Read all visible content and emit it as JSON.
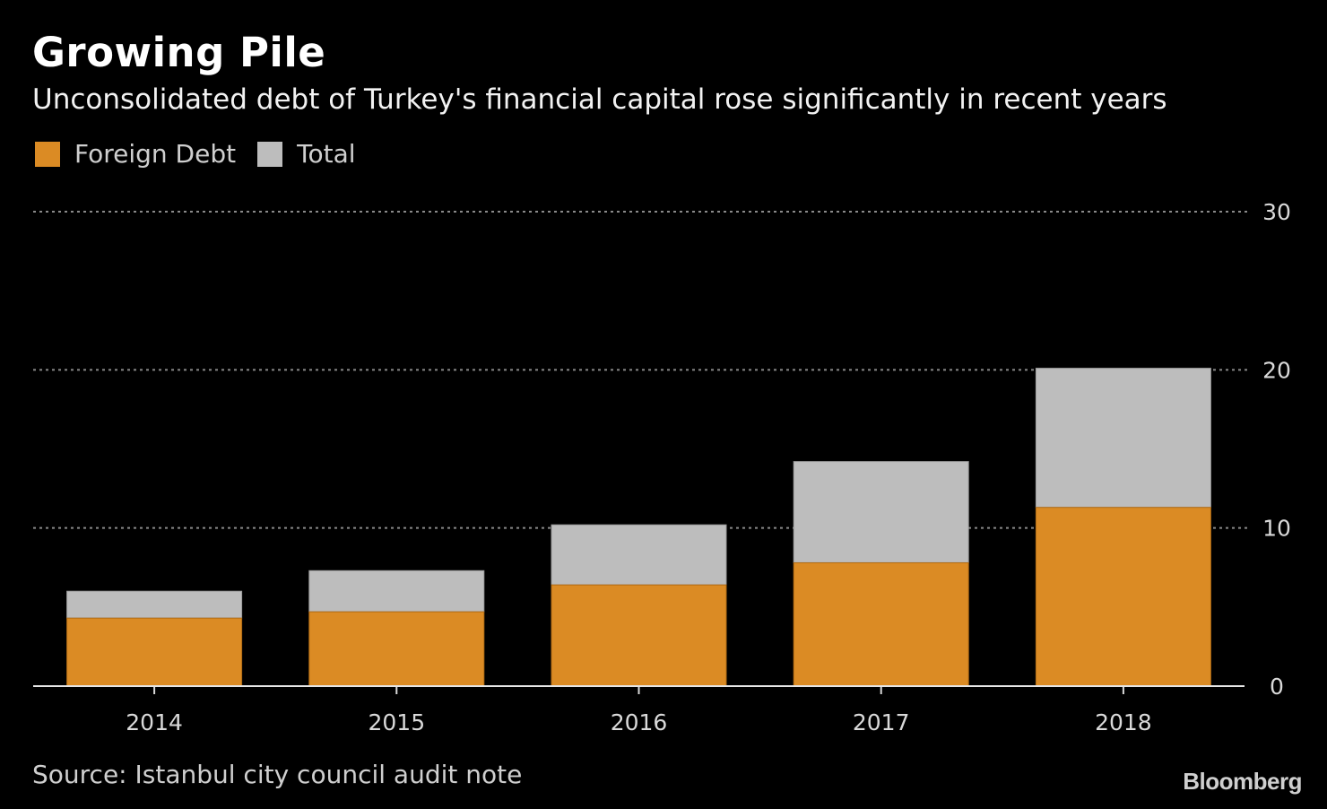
{
  "chart_data": {
    "type": "bar",
    "stacked": true,
    "title": "Growing Pile",
    "subtitle": "Unconsolidated debt of Turkey's financial capital rose significantly in recent years",
    "categories": [
      "2014",
      "2015",
      "2016",
      "2017",
      "2018"
    ],
    "series": [
      {
        "name": "Foreign Debt",
        "color": "#DB8B24",
        "values": [
          4.3,
          4.7,
          6.4,
          7.8,
          11.3
        ]
      },
      {
        "name": "Total",
        "color": "#BDBDBD",
        "values": [
          6.0,
          7.3,
          10.2,
          14.2,
          20.1
        ]
      }
    ],
    "ylim": [
      0,
      30
    ],
    "yticks": [
      0,
      10,
      20,
      30
    ],
    "ytick_labels": [
      "0",
      "10",
      "20",
      "30"
    ],
    "y_axis_side": "right",
    "grid": true,
    "legend_position": "top-left",
    "source": "Source: Istanbul city council audit note",
    "brand": "Bloomberg"
  }
}
